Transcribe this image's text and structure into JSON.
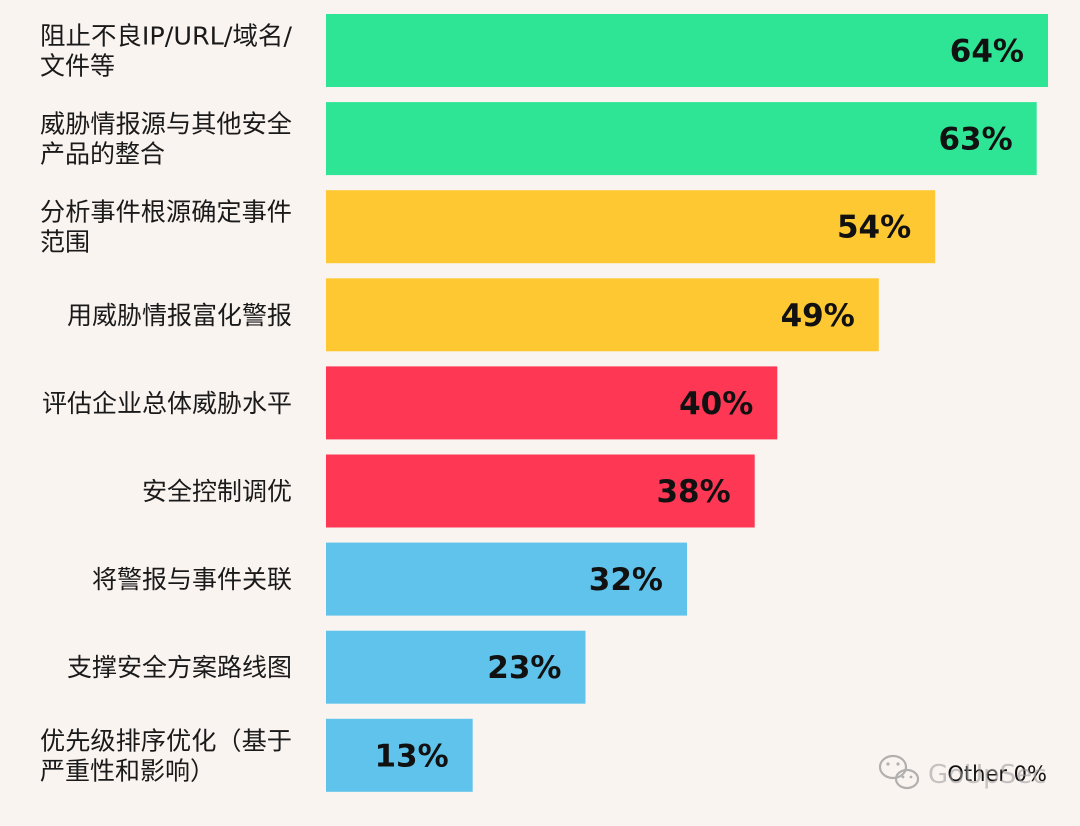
{
  "chart_data": {
    "type": "bar",
    "orientation": "horizontal",
    "categories": [
      [
        "阻止不良IP/URL/域名/",
        "文件等"
      ],
      [
        "威胁情报源与其他安全",
        "产品的整合"
      ],
      [
        "分析事件根源确定事件",
        "范围"
      ],
      [
        "用威胁情报富化警报"
      ],
      [
        "评估企业总体威胁水平"
      ],
      [
        "安全控制调优"
      ],
      [
        "将警报与事件关联"
      ],
      [
        "支撑安全方案路线图"
      ],
      [
        "优先级排序优化（基于",
        "严重性和影响）"
      ]
    ],
    "values": [
      64,
      63,
      54,
      49,
      40,
      38,
      32,
      23,
      13
    ],
    "value_labels": [
      "64%",
      "63%",
      "54%",
      "49%",
      "40%",
      "38%",
      "32%",
      "23%",
      "13%"
    ],
    "bar_colors": [
      "#2ee596",
      "#2ee596",
      "#fec832",
      "#fec832",
      "#fd3754",
      "#fd3754",
      "#5fc3eb",
      "#5fc3eb",
      "#5fc3eb"
    ],
    "xlim": [
      0,
      64
    ],
    "grid": false,
    "other_label": "Other 0%"
  },
  "watermark": {
    "text": "GoUpSec",
    "icon": "wechat-icon"
  }
}
